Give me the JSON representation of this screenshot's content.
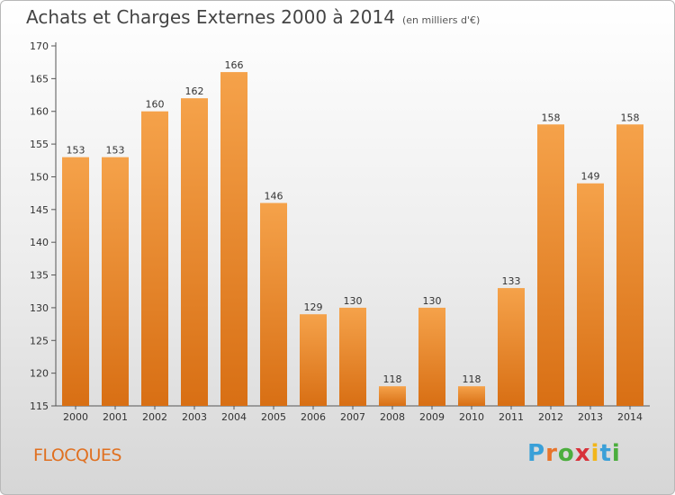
{
  "title": "Achats et Charges Externes 2000 à 2014",
  "unit": "(en milliers d'€)",
  "commune": "FLOCQUES",
  "logo": {
    "letters": [
      "P",
      "r",
      "o",
      "x",
      "i",
      "t",
      "i"
    ],
    "colors": [
      "#3aa0d8",
      "#e8742a",
      "#4cae3e",
      "#d8323a",
      "#f2b61a",
      "#3aa0d8",
      "#4cae3e"
    ]
  },
  "chart_data": {
    "type": "bar",
    "categories": [
      "2000",
      "2001",
      "2002",
      "2003",
      "2004",
      "2005",
      "2006",
      "2007",
      "2008",
      "2009",
      "2010",
      "2011",
      "2012",
      "2013",
      "2014"
    ],
    "values": [
      153,
      153,
      160,
      162,
      166,
      146,
      129,
      130,
      118,
      130,
      118,
      133,
      158,
      149,
      158
    ],
    "ylim": [
      115,
      170
    ],
    "yticks": [
      115,
      120,
      125,
      130,
      135,
      140,
      145,
      150,
      155,
      160,
      165,
      170
    ],
    "bar_color_top": "#f5a24a",
    "bar_color_bottom": "#d86f14",
    "grid": false
  }
}
